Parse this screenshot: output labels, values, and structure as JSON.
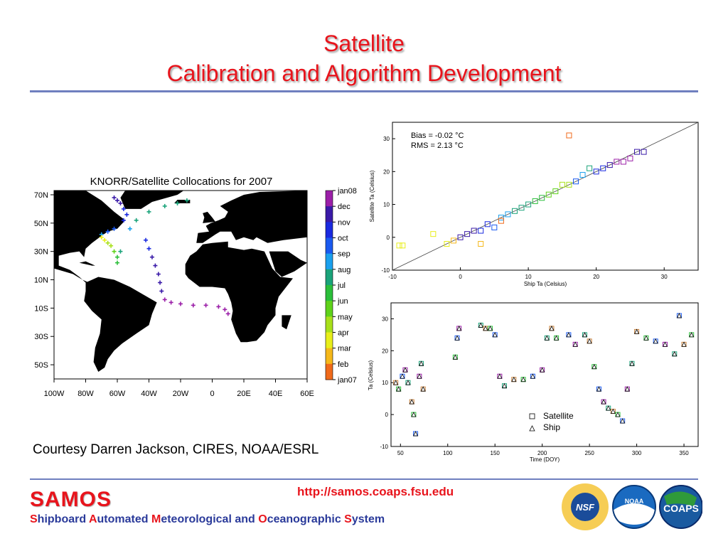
{
  "slide": {
    "title_line1": "Satellite",
    "title_line2": "Calibration and Algorithm Development",
    "courtesy": "Courtesy Darren Jackson, CIRES, NOAA/ESRL",
    "url": "http://samos.coaps.fsu.edu",
    "samos_logo": "SAMOS",
    "samos_subtitle": [
      {
        "cap": "S",
        "rest": "hipboard "
      },
      {
        "cap": "A",
        "rest": "utomated "
      },
      {
        "cap": "M",
        "rest": "eteorological and "
      },
      {
        "cap": "O",
        "rest": "ceanographic "
      },
      {
        "cap": "S",
        "rest": "ystem"
      }
    ],
    "logos": [
      {
        "name": "nsf-logo",
        "text": "NSF"
      },
      {
        "name": "noaa-logo",
        "text": "NOAA"
      },
      {
        "name": "coaps-logo",
        "text": "COAPS"
      }
    ],
    "accent_red": "#e8141c",
    "rule_color": "#6f7fbf"
  },
  "chart_data": [
    {
      "type": "map",
      "title": "KNORR/Satellite Collocations for 2007",
      "lat_ticks": [
        "70N",
        "50N",
        "30N",
        "10N",
        "10S",
        "30S",
        "50S"
      ],
      "lon_ticks": [
        "100W",
        "80W",
        "60W",
        "40W",
        "20W",
        "0",
        "20E",
        "40E",
        "60E"
      ],
      "colorbar_labels": [
        "jan08",
        "dec",
        "nov",
        "oct",
        "sep",
        "aug",
        "jul",
        "jun",
        "may",
        "apr",
        "mar",
        "feb",
        "jan07"
      ],
      "colorbar_colors": [
        "#9b1fa8",
        "#3a1aa8",
        "#1a2ae0",
        "#1a5af0",
        "#1aa0ee",
        "#1aa37a",
        "#2bbf3a",
        "#5fd21a",
        "#a8e01a",
        "#e8ee1a",
        "#f5b81a",
        "#f06a1a",
        "#c81a1a"
      ],
      "track_points": [
        {
          "lon": -62,
          "lat": 68,
          "m": 11
        },
        {
          "lon": -60,
          "lat": 66,
          "m": 11
        },
        {
          "lon": -58,
          "lat": 64,
          "m": 11
        },
        {
          "lon": -56,
          "lat": 60,
          "m": 10
        },
        {
          "lon": -54,
          "lat": 56,
          "m": 10
        },
        {
          "lon": -56,
          "lat": 52,
          "m": 10
        },
        {
          "lon": -62,
          "lat": 46,
          "m": 9
        },
        {
          "lon": -66,
          "lat": 44,
          "m": 9
        },
        {
          "lon": -70,
          "lat": 42,
          "m": 8
        },
        {
          "lon": -70,
          "lat": 40,
          "m": 3
        },
        {
          "lon": -68,
          "lat": 38,
          "m": 3
        },
        {
          "lon": -66,
          "lat": 36,
          "m": 4
        },
        {
          "lon": -64,
          "lat": 34,
          "m": 4
        },
        {
          "lon": -62,
          "lat": 30,
          "m": 5
        },
        {
          "lon": -60,
          "lat": 26,
          "m": 6
        },
        {
          "lon": -60,
          "lat": 22,
          "m": 6
        },
        {
          "lon": -58,
          "lat": 30,
          "m": 7
        },
        {
          "lon": -42,
          "lat": 38,
          "m": 10
        },
        {
          "lon": -40,
          "lat": 32,
          "m": 10
        },
        {
          "lon": -38,
          "lat": 26,
          "m": 11
        },
        {
          "lon": -36,
          "lat": 20,
          "m": 11
        },
        {
          "lon": -34,
          "lat": 14,
          "m": 11
        },
        {
          "lon": -33,
          "lat": 8,
          "m": 11
        },
        {
          "lon": -32,
          "lat": 2,
          "m": 11
        },
        {
          "lon": -30,
          "lat": -4,
          "m": 12
        },
        {
          "lon": -26,
          "lat": -6,
          "m": 12
        },
        {
          "lon": -20,
          "lat": -7,
          "m": 12
        },
        {
          "lon": -12,
          "lat": -8,
          "m": 12
        },
        {
          "lon": -4,
          "lat": -8,
          "m": 12
        },
        {
          "lon": 4,
          "lat": -9,
          "m": 12
        },
        {
          "lon": 8,
          "lat": -11,
          "m": 12
        },
        {
          "lon": 10,
          "lat": -14,
          "m": 12
        },
        {
          "lon": -52,
          "lat": 46,
          "m": 8
        },
        {
          "lon": -48,
          "lat": 52,
          "m": 7
        },
        {
          "lon": -40,
          "lat": 58,
          "m": 7
        },
        {
          "lon": -30,
          "lat": 62,
          "m": 7
        },
        {
          "lon": -22,
          "lat": 64,
          "m": 7
        },
        {
          "lon": -16,
          "lat": 66,
          "m": 7
        }
      ]
    },
    {
      "type": "scatter",
      "annotation_bias": "Bias =   -0.02 °C",
      "annotation_rms": "RMS =    2.13 °C",
      "xlabel": "Ship Ta (Celsius)",
      "ylabel": "Satellite Ta (Celsius)",
      "xlim": [
        -10,
        35
      ],
      "ylim": [
        -10,
        35
      ],
      "xticks": [
        -10,
        0,
        10,
        20,
        30
      ],
      "yticks": [
        -10,
        0,
        10,
        20,
        30
      ],
      "one_to_one_line": true,
      "points": [
        {
          "x": -9,
          "y": -2.5,
          "m": 3
        },
        {
          "x": -8.5,
          "y": -2.5,
          "m": 3
        },
        {
          "x": -4,
          "y": 1,
          "m": 3
        },
        {
          "x": -1,
          "y": -1,
          "m": 2
        },
        {
          "x": -2,
          "y": -2,
          "m": 3
        },
        {
          "x": 0,
          "y": 0,
          "m": 11
        },
        {
          "x": 1,
          "y": 1,
          "m": 11
        },
        {
          "x": 2,
          "y": 2,
          "m": 11
        },
        {
          "x": 3,
          "y": 2,
          "m": 10
        },
        {
          "x": 4,
          "y": 4,
          "m": 10
        },
        {
          "x": 5,
          "y": 3,
          "m": 9
        },
        {
          "x": 6,
          "y": 6,
          "m": 8
        },
        {
          "x": 7,
          "y": 7,
          "m": 8
        },
        {
          "x": 8,
          "y": 8,
          "m": 7
        },
        {
          "x": 9,
          "y": 9,
          "m": 7
        },
        {
          "x": 10,
          "y": 10,
          "m": 7
        },
        {
          "x": 11,
          "y": 11,
          "m": 6
        },
        {
          "x": 12,
          "y": 12,
          "m": 6
        },
        {
          "x": 13,
          "y": 13,
          "m": 5
        },
        {
          "x": 14,
          "y": 14,
          "m": 5
        },
        {
          "x": 15,
          "y": 16,
          "m": 4
        },
        {
          "x": 16,
          "y": 16,
          "m": 4
        },
        {
          "x": 17,
          "y": 17,
          "m": 9
        },
        {
          "x": 18,
          "y": 19,
          "m": 8
        },
        {
          "x": 19,
          "y": 21,
          "m": 7
        },
        {
          "x": 20,
          "y": 20,
          "m": 10
        },
        {
          "x": 21,
          "y": 21,
          "m": 10
        },
        {
          "x": 22,
          "y": 22,
          "m": 11
        },
        {
          "x": 23,
          "y": 23,
          "m": 12
        },
        {
          "x": 24,
          "y": 23,
          "m": 12
        },
        {
          "x": 25,
          "y": 24,
          "m": 12
        },
        {
          "x": 26,
          "y": 26,
          "m": 11
        },
        {
          "x": 27,
          "y": 26,
          "m": 11
        },
        {
          "x": 16,
          "y": 31,
          "m": 1
        },
        {
          "x": 6,
          "y": 5,
          "m": 1
        },
        {
          "x": 3,
          "y": -2,
          "m": 2
        }
      ]
    },
    {
      "type": "scatter",
      "xlabel": "Time (DOY)",
      "ylabel": "Ta (Celsius)",
      "xlim": [
        40,
        365
      ],
      "ylim": [
        -10,
        35
      ],
      "xticks": [
        50,
        100,
        150,
        200,
        250,
        300,
        350
      ],
      "yticks": [
        -10,
        0,
        10,
        20,
        30
      ],
      "legend": [
        "Satellite",
        "Ship"
      ],
      "legend_position": "bottom-right",
      "points": [
        {
          "x": 45,
          "y": 10
        },
        {
          "x": 48,
          "y": 8
        },
        {
          "x": 52,
          "y": 12
        },
        {
          "x": 55,
          "y": 14
        },
        {
          "x": 58,
          "y": 10
        },
        {
          "x": 62,
          "y": 4
        },
        {
          "x": 64,
          "y": 0
        },
        {
          "x": 66,
          "y": -6
        },
        {
          "x": 70,
          "y": 12
        },
        {
          "x": 72,
          "y": 16
        },
        {
          "x": 74,
          "y": 8
        },
        {
          "x": 108,
          "y": 18
        },
        {
          "x": 110,
          "y": 24
        },
        {
          "x": 112,
          "y": 27
        },
        {
          "x": 135,
          "y": 28
        },
        {
          "x": 140,
          "y": 27
        },
        {
          "x": 145,
          "y": 27
        },
        {
          "x": 150,
          "y": 25
        },
        {
          "x": 155,
          "y": 12
        },
        {
          "x": 160,
          "y": 9
        },
        {
          "x": 170,
          "y": 11
        },
        {
          "x": 180,
          "y": 11
        },
        {
          "x": 190,
          "y": 12
        },
        {
          "x": 200,
          "y": 14
        },
        {
          "x": 205,
          "y": 24
        },
        {
          "x": 210,
          "y": 27
        },
        {
          "x": 215,
          "y": 24
        },
        {
          "x": 228,
          "y": 25
        },
        {
          "x": 235,
          "y": 22
        },
        {
          "x": 245,
          "y": 25
        },
        {
          "x": 250,
          "y": 23
        },
        {
          "x": 255,
          "y": 15
        },
        {
          "x": 260,
          "y": 8
        },
        {
          "x": 265,
          "y": 4
        },
        {
          "x": 270,
          "y": 2
        },
        {
          "x": 275,
          "y": 1
        },
        {
          "x": 280,
          "y": 0
        },
        {
          "x": 285,
          "y": -2
        },
        {
          "x": 290,
          "y": 8
        },
        {
          "x": 295,
          "y": 16
        },
        {
          "x": 300,
          "y": 26
        },
        {
          "x": 310,
          "y": 24
        },
        {
          "x": 320,
          "y": 23
        },
        {
          "x": 330,
          "y": 22
        },
        {
          "x": 340,
          "y": 19
        },
        {
          "x": 350,
          "y": 22
        },
        {
          "x": 358,
          "y": 25
        },
        {
          "x": 345,
          "y": 31
        }
      ]
    }
  ]
}
